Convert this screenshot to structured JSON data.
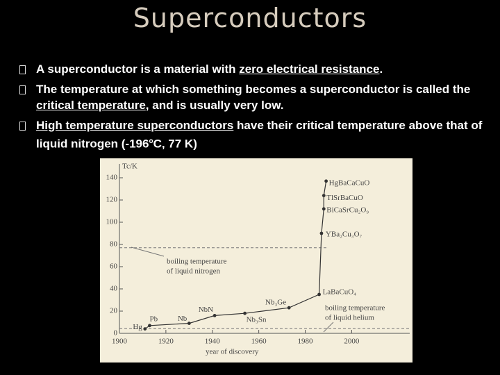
{
  "title": "Superconductors",
  "bullets": [
    [
      {
        "text": "A superconductor is a material with "
      },
      {
        "text": "zero electrical resistance",
        "underline": true
      },
      {
        "text": "."
      }
    ],
    [
      {
        "text": "The temperature at which something becomes a superconductor is called the "
      },
      {
        "text": "critical temperature",
        "underline": true
      },
      {
        "text": ", and is usually very low."
      }
    ],
    [
      {
        "text": "High temperature superconductors",
        "underline": true
      },
      {
        "text": " have their critical temperature above that of liquid nitrogen (-196"
      },
      {
        "text": "o",
        "sup": true
      },
      {
        "text": "C, 77 K)"
      }
    ]
  ],
  "chart_data": {
    "type": "line",
    "y_label": "Tc/K",
    "x_label": "year of discovery",
    "x": [
      1911,
      1913,
      1930,
      1941,
      1954,
      1973,
      1986,
      1987,
      1988,
      1988,
      1989
    ],
    "series": [
      {
        "color": "#333333",
        "values": [
          4,
          7,
          9,
          16,
          18,
          23,
          35,
          90,
          112,
          124,
          137
        ],
        "point_labels": [
          "Hg",
          "Pb",
          "Nb",
          "NbN",
          "Nb₃Sn",
          "Nb₃Ge",
          "LaBaCuO₄",
          "YBa₂Cu₃O₇",
          "BiCaSrCu₂O₉",
          "TlSrBaCuO",
          "HgBaCaCuO"
        ]
      }
    ],
    "reference_lines": [
      {
        "value": 77,
        "label": [
          "boiling temperature",
          "of liquid nitrogen"
        ]
      },
      {
        "value": 4.2,
        "label": [
          "boiling temperature",
          "of liquid helium"
        ]
      }
    ],
    "xlim": [
      1900,
      2025
    ],
    "ylim": [
      0,
      145
    ],
    "xticks": [
      1900,
      1920,
      1940,
      1960,
      1980,
      2000
    ],
    "yticks": [
      0,
      20,
      40,
      60,
      80,
      100,
      120,
      140
    ]
  }
}
